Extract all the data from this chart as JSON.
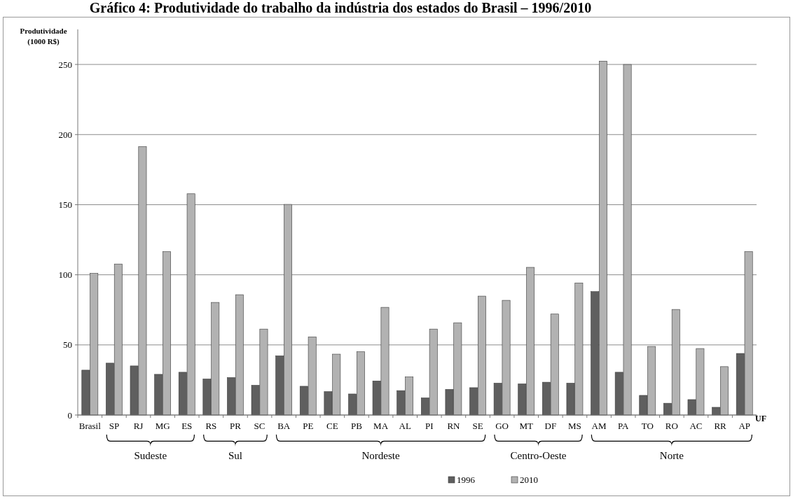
{
  "chart_data": {
    "type": "bar",
    "title": "Gráfico 4: Produtividade do trabalho da indústria dos estados do Brasil – 1996/2010",
    "ylabel": "Produtividade (1000 R$)",
    "xlabel": "UF",
    "categories": [
      "Brasil",
      "SP",
      "RJ",
      "MG",
      "ES",
      "RS",
      "PR",
      "SC",
      "BA",
      "PE",
      "CE",
      "PB",
      "MA",
      "AL",
      "PI",
      "RN",
      "SE",
      "GO",
      "MT",
      "DF",
      "MS",
      "AM",
      "PA",
      "TO",
      "RO",
      "AC",
      "RR",
      "AP"
    ],
    "series": [
      {
        "name": "1996",
        "color": "#5f5f5f",
        "values": [
          32,
          37,
          35,
          29,
          30.5,
          25.7,
          26.7,
          21.2,
          42.2,
          20.5,
          16.7,
          15,
          24.3,
          17.4,
          12.2,
          18.3,
          19.5,
          22.7,
          22.2,
          23.4,
          22.7,
          88,
          30.5,
          14,
          8.4,
          11,
          5.5,
          43.9
        ]
      },
      {
        "name": "2010",
        "color": "#b2b2b2",
        "values": [
          101,
          107.7,
          191.4,
          116.5,
          157.8,
          80.3,
          85.8,
          61.3,
          150.2,
          55.7,
          43.4,
          45.1,
          76.8,
          27.2,
          61.3,
          65.8,
          84.8,
          81.8,
          105.3,
          72,
          94.2,
          252.4,
          250,
          48.9,
          75.3,
          47.4,
          34.5,
          116.5
        ]
      }
    ],
    "annotations": [
      "Sudeste",
      "Sul",
      "Nordeste",
      "Centro-Oeste",
      "Norte"
    ],
    "ylim": [
      0,
      275
    ],
    "yticks": [
      0,
      50,
      100,
      150,
      200,
      250
    ],
    "grid": "y",
    "legend": "bottom"
  }
}
